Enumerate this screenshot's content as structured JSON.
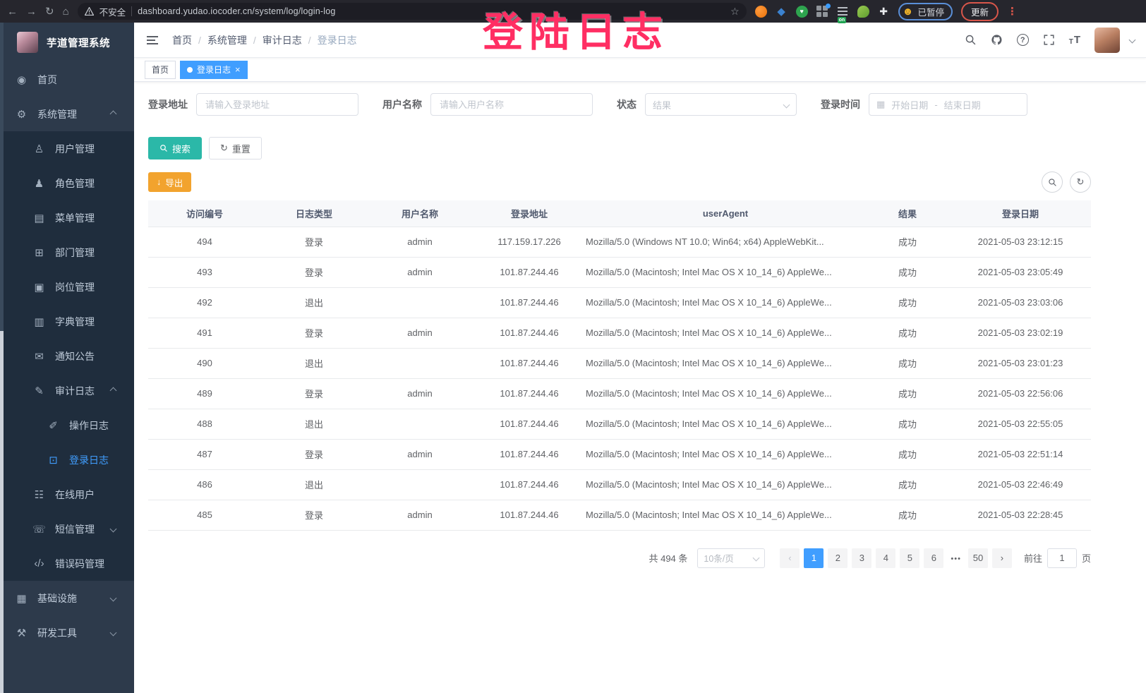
{
  "overlay": {
    "text": "登陆日志"
  },
  "browser": {
    "security_label": "不安全",
    "url": "dashboard.yudao.iocoder.cn/system/log/login-log",
    "extension_badge": "on",
    "paused_label": "已暂停",
    "update_label": "更新"
  },
  "sidebar": {
    "logo_title": "芋道管理系统",
    "items": [
      {
        "label": "首页",
        "icon": "dashboard-icon",
        "level": 1
      },
      {
        "label": "系统管理",
        "icon": "gear-icon",
        "level": 1,
        "arrow": "up"
      },
      {
        "label": "用户管理",
        "icon": "user-icon",
        "level": 2
      },
      {
        "label": "角色管理",
        "icon": "roles-icon",
        "level": 2
      },
      {
        "label": "菜单管理",
        "icon": "menu-tree-icon",
        "level": 2
      },
      {
        "label": "部门管理",
        "icon": "dept-icon",
        "level": 2
      },
      {
        "label": "岗位管理",
        "icon": "post-icon",
        "level": 2
      },
      {
        "label": "字典管理",
        "icon": "dict-icon",
        "level": 2
      },
      {
        "label": "通知公告",
        "icon": "notice-icon",
        "level": 2
      },
      {
        "label": "审计日志",
        "icon": "audit-log-icon",
        "level": 2,
        "arrow": "up"
      },
      {
        "label": "操作日志",
        "icon": "operate-log-icon",
        "level": 3
      },
      {
        "label": "登录日志",
        "icon": "login-log-icon",
        "level": 3,
        "active": true
      },
      {
        "label": "在线用户",
        "icon": "online-user-icon",
        "level": 2
      },
      {
        "label": "短信管理",
        "icon": "sms-icon",
        "level": 2,
        "arrow": "down"
      },
      {
        "label": "错误码管理",
        "icon": "error-code-icon",
        "level": 2
      },
      {
        "label": "基础设施",
        "icon": "infra-icon",
        "level": 1,
        "arrow": "down"
      },
      {
        "label": "研发工具",
        "icon": "devtools-icon",
        "level": 1,
        "arrow": "down"
      }
    ]
  },
  "header": {
    "breadcrumb": [
      "首页",
      "系统管理",
      "审计日志",
      "登录日志"
    ]
  },
  "tabs": {
    "items": [
      {
        "label": "首页",
        "active": false,
        "closable": false
      },
      {
        "label": "登录日志",
        "active": true,
        "closable": true
      }
    ]
  },
  "filters": {
    "login_address_label": "登录地址",
    "login_address_placeholder": "请输入登录地址",
    "username_label": "用户名称",
    "username_placeholder": "请输入用户名称",
    "status_label": "状态",
    "status_placeholder": "结果",
    "login_time_label": "登录时间",
    "date_start_placeholder": "开始日期",
    "date_separator": "-",
    "date_end_placeholder": "结束日期",
    "search_label": "搜索",
    "reset_label": "重置"
  },
  "toolbar": {
    "export_label": "导出"
  },
  "table": {
    "columns": [
      "访问编号",
      "日志类型",
      "用户名称",
      "登录地址",
      "userAgent",
      "结果",
      "登录日期"
    ],
    "rows": [
      {
        "id": "494",
        "type": "登录",
        "user": "admin",
        "ip": "117.159.17.226",
        "ua": "Mozilla/5.0 (Windows NT 10.0; Win64; x64) AppleWebKit...",
        "result": "成功",
        "date": "2021-05-03 23:12:15"
      },
      {
        "id": "493",
        "type": "登录",
        "user": "admin",
        "ip": "101.87.244.46",
        "ua": "Mozilla/5.0 (Macintosh; Intel Mac OS X 10_14_6) AppleWe...",
        "result": "成功",
        "date": "2021-05-03 23:05:49"
      },
      {
        "id": "492",
        "type": "退出",
        "user": "",
        "ip": "101.87.244.46",
        "ua": "Mozilla/5.0 (Macintosh; Intel Mac OS X 10_14_6) AppleWe...",
        "result": "成功",
        "date": "2021-05-03 23:03:06"
      },
      {
        "id": "491",
        "type": "登录",
        "user": "admin",
        "ip": "101.87.244.46",
        "ua": "Mozilla/5.0 (Macintosh; Intel Mac OS X 10_14_6) AppleWe...",
        "result": "成功",
        "date": "2021-05-03 23:02:19"
      },
      {
        "id": "490",
        "type": "退出",
        "user": "",
        "ip": "101.87.244.46",
        "ua": "Mozilla/5.0 (Macintosh; Intel Mac OS X 10_14_6) AppleWe...",
        "result": "成功",
        "date": "2021-05-03 23:01:23"
      },
      {
        "id": "489",
        "type": "登录",
        "user": "admin",
        "ip": "101.87.244.46",
        "ua": "Mozilla/5.0 (Macintosh; Intel Mac OS X 10_14_6) AppleWe...",
        "result": "成功",
        "date": "2021-05-03 22:56:06"
      },
      {
        "id": "488",
        "type": "退出",
        "user": "",
        "ip": "101.87.244.46",
        "ua": "Mozilla/5.0 (Macintosh; Intel Mac OS X 10_14_6) AppleWe...",
        "result": "成功",
        "date": "2021-05-03 22:55:05"
      },
      {
        "id": "487",
        "type": "登录",
        "user": "admin",
        "ip": "101.87.244.46",
        "ua": "Mozilla/5.0 (Macintosh; Intel Mac OS X 10_14_6) AppleWe...",
        "result": "成功",
        "date": "2021-05-03 22:51:14"
      },
      {
        "id": "486",
        "type": "退出",
        "user": "",
        "ip": "101.87.244.46",
        "ua": "Mozilla/5.0 (Macintosh; Intel Mac OS X 10_14_6) AppleWe...",
        "result": "成功",
        "date": "2021-05-03 22:46:49"
      },
      {
        "id": "485",
        "type": "登录",
        "user": "admin",
        "ip": "101.87.244.46",
        "ua": "Mozilla/5.0 (Macintosh; Intel Mac OS X 10_14_6) AppleWe...",
        "result": "成功",
        "date": "2021-05-03 22:28:45"
      }
    ]
  },
  "pagination": {
    "total_label": "共 494 条",
    "page_size_label": "10条/页",
    "pages": [
      "1",
      "2",
      "3",
      "4",
      "5",
      "6",
      "•••",
      "50"
    ],
    "active_page": "1",
    "goto_label": "前往",
    "goto_value": "1",
    "page_unit_label": "页"
  },
  "colors": {
    "accent_blue": "#409EFF",
    "search_teal": "#2BB8A8",
    "export_orange": "#F2A32E",
    "overlay_pink": "#FF2E63",
    "sidebar_bg": "#2D3A4B",
    "submenu_bg": "#1F2D3D"
  }
}
